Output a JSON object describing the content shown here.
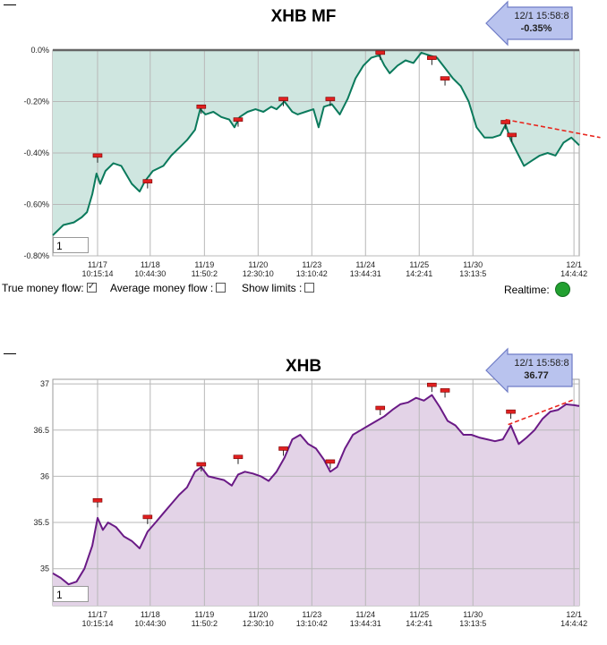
{
  "chart_data": [
    {
      "type": "area",
      "title": "XHB MF",
      "badge": {
        "time": "12/1 15:58:8",
        "value": "-0.35%"
      },
      "period_input": "1",
      "ylim": [
        -0.8,
        0.0
      ],
      "y_ticks": [
        {
          "v": 0.0,
          "label": "0.0%"
        },
        {
          "v": -0.2,
          "label": "-0.20%"
        },
        {
          "v": -0.4,
          "label": "-0.40%"
        },
        {
          "v": -0.6,
          "label": "-0.60%"
        },
        {
          "v": -0.8,
          "label": "-0.80%"
        }
      ],
      "x_ticks": [
        {
          "x": 0.085,
          "date": "11/17",
          "time": "10:15:14"
        },
        {
          "x": 0.185,
          "date": "11/18",
          "time": "10:44:30"
        },
        {
          "x": 0.288,
          "date": "11/19",
          "time": "11:50:2"
        },
        {
          "x": 0.39,
          "date": "11/20",
          "time": "12:30:10"
        },
        {
          "x": 0.492,
          "date": "11/23",
          "time": "13:10:42"
        },
        {
          "x": 0.594,
          "date": "11/24",
          "time": "13:44:31"
        },
        {
          "x": 0.696,
          "date": "11/25",
          "time": "14:2:41"
        },
        {
          "x": 0.798,
          "date": "11/30",
          "time": "13:13:5"
        },
        {
          "x": 0.99,
          "date": "12/1",
          "time": "14:4:42"
        }
      ],
      "series": [
        {
          "line_color": "#0b7a5c",
          "fill_color": "#cfe6e0",
          "points": [
            [
              0.0,
              -0.72
            ],
            [
              0.02,
              -0.68
            ],
            [
              0.04,
              -0.67
            ],
            [
              0.055,
              -0.65
            ],
            [
              0.065,
              -0.63
            ],
            [
              0.075,
              -0.56
            ],
            [
              0.083,
              -0.48
            ],
            [
              0.09,
              -0.52
            ],
            [
              0.1,
              -0.47
            ],
            [
              0.115,
              -0.44
            ],
            [
              0.13,
              -0.45
            ],
            [
              0.15,
              -0.52
            ],
            [
              0.165,
              -0.55
            ],
            [
              0.175,
              -0.51
            ],
            [
              0.19,
              -0.47
            ],
            [
              0.21,
              -0.45
            ],
            [
              0.225,
              -0.41
            ],
            [
              0.24,
              -0.38
            ],
            [
              0.255,
              -0.35
            ],
            [
              0.27,
              -0.31
            ],
            [
              0.28,
              -0.23
            ],
            [
              0.29,
              -0.25
            ],
            [
              0.305,
              -0.24
            ],
            [
              0.32,
              -0.26
            ],
            [
              0.335,
              -0.27
            ],
            [
              0.345,
              -0.3
            ],
            [
              0.355,
              -0.26
            ],
            [
              0.37,
              -0.24
            ],
            [
              0.385,
              -0.23
            ],
            [
              0.4,
              -0.24
            ],
            [
              0.415,
              -0.22
            ],
            [
              0.425,
              -0.23
            ],
            [
              0.44,
              -0.2
            ],
            [
              0.455,
              -0.24
            ],
            [
              0.465,
              -0.25
            ],
            [
              0.48,
              -0.24
            ],
            [
              0.495,
              -0.23
            ],
            [
              0.505,
              -0.3
            ],
            [
              0.515,
              -0.22
            ],
            [
              0.53,
              -0.21
            ],
            [
              0.545,
              -0.25
            ],
            [
              0.56,
              -0.19
            ],
            [
              0.575,
              -0.11
            ],
            [
              0.59,
              -0.06
            ],
            [
              0.605,
              -0.03
            ],
            [
              0.62,
              -0.02
            ],
            [
              0.63,
              -0.06
            ],
            [
              0.64,
              -0.09
            ],
            [
              0.655,
              -0.06
            ],
            [
              0.67,
              -0.04
            ],
            [
              0.685,
              -0.05
            ],
            [
              0.7,
              -0.01
            ],
            [
              0.715,
              -0.02
            ],
            [
              0.73,
              -0.03
            ],
            [
              0.745,
              -0.07
            ],
            [
              0.76,
              -0.11
            ],
            [
              0.775,
              -0.14
            ],
            [
              0.79,
              -0.2
            ],
            [
              0.805,
              -0.3
            ],
            [
              0.82,
              -0.34
            ],
            [
              0.835,
              -0.34
            ],
            [
              0.85,
              -0.33
            ],
            [
              0.86,
              -0.29
            ],
            [
              0.87,
              -0.35
            ],
            [
              0.885,
              -0.41
            ],
            [
              0.895,
              -0.45
            ],
            [
              0.91,
              -0.43
            ],
            [
              0.925,
              -0.41
            ],
            [
              0.94,
              -0.4
            ],
            [
              0.955,
              -0.41
            ],
            [
              0.97,
              -0.36
            ],
            [
              0.985,
              -0.34
            ],
            [
              1.0,
              -0.37
            ]
          ]
        }
      ],
      "markers": [
        [
          0.085,
          -0.41
        ],
        [
          0.18,
          -0.51
        ],
        [
          0.282,
          -0.22
        ],
        [
          0.352,
          -0.27
        ],
        [
          0.438,
          -0.19
        ],
        [
          0.527,
          -0.19
        ],
        [
          0.622,
          -0.01
        ],
        [
          0.72,
          -0.03
        ],
        [
          0.745,
          -0.11
        ],
        [
          0.86,
          -0.28
        ],
        [
          0.872,
          -0.33
        ]
      ],
      "trendline": {
        "color": "#e8261e",
        "from": [
          0.86,
          -0.27
        ],
        "to": [
          1.04,
          -0.34
        ]
      }
    },
    {
      "type": "area",
      "title": "XHB",
      "badge": {
        "time": "12/1 15:58:8",
        "value": "36.77"
      },
      "period_input": "1",
      "ylim": [
        34.6,
        37.05
      ],
      "y_ticks": [
        {
          "v": 37.0,
          "label": "37"
        },
        {
          "v": 36.5,
          "label": "36.5"
        },
        {
          "v": 36.0,
          "label": "36"
        },
        {
          "v": 35.5,
          "label": "35.5"
        },
        {
          "v": 35.0,
          "label": "35"
        }
      ],
      "x_ticks": [
        {
          "x": 0.085,
          "date": "11/17",
          "time": "10:15:14"
        },
        {
          "x": 0.185,
          "date": "11/18",
          "time": "10:44:30"
        },
        {
          "x": 0.288,
          "date": "11/19",
          "time": "11:50:2"
        },
        {
          "x": 0.39,
          "date": "11/20",
          "time": "12:30:10"
        },
        {
          "x": 0.492,
          "date": "11/23",
          "time": "13:10:42"
        },
        {
          "x": 0.594,
          "date": "11/24",
          "time": "13:44:31"
        },
        {
          "x": 0.696,
          "date": "11/25",
          "time": "14:2:41"
        },
        {
          "x": 0.798,
          "date": "11/30",
          "time": "13:13:5"
        },
        {
          "x": 0.99,
          "date": "12/1",
          "time": "14:4:42"
        }
      ],
      "series": [
        {
          "line_color": "#6a1a86",
          "fill_color": "#e3d3e7",
          "points": [
            [
              0.0,
              34.95
            ],
            [
              0.015,
              34.9
            ],
            [
              0.03,
              34.83
            ],
            [
              0.045,
              34.86
            ],
            [
              0.06,
              35.0
            ],
            [
              0.075,
              35.25
            ],
            [
              0.085,
              35.55
            ],
            [
              0.095,
              35.42
            ],
            [
              0.105,
              35.5
            ],
            [
              0.12,
              35.45
            ],
            [
              0.135,
              35.35
            ],
            [
              0.15,
              35.3
            ],
            [
              0.165,
              35.22
            ],
            [
              0.18,
              35.4
            ],
            [
              0.195,
              35.5
            ],
            [
              0.21,
              35.6
            ],
            [
              0.225,
              35.7
            ],
            [
              0.24,
              35.8
            ],
            [
              0.255,
              35.88
            ],
            [
              0.27,
              36.05
            ],
            [
              0.282,
              36.1
            ],
            [
              0.295,
              36.0
            ],
            [
              0.31,
              35.98
            ],
            [
              0.325,
              35.96
            ],
            [
              0.34,
              35.9
            ],
            [
              0.352,
              36.02
            ],
            [
              0.365,
              36.05
            ],
            [
              0.38,
              36.03
            ],
            [
              0.395,
              36.0
            ],
            [
              0.41,
              35.95
            ],
            [
              0.425,
              36.05
            ],
            [
              0.44,
              36.2
            ],
            [
              0.455,
              36.4
            ],
            [
              0.47,
              36.45
            ],
            [
              0.485,
              36.35
            ],
            [
              0.5,
              36.3
            ],
            [
              0.515,
              36.18
            ],
            [
              0.527,
              36.05
            ],
            [
              0.54,
              36.1
            ],
            [
              0.555,
              36.3
            ],
            [
              0.57,
              36.45
            ],
            [
              0.585,
              36.5
            ],
            [
              0.6,
              36.55
            ],
            [
              0.615,
              36.6
            ],
            [
              0.63,
              36.65
            ],
            [
              0.645,
              36.72
            ],
            [
              0.66,
              36.78
            ],
            [
              0.675,
              36.8
            ],
            [
              0.69,
              36.85
            ],
            [
              0.705,
              36.82
            ],
            [
              0.72,
              36.88
            ],
            [
              0.735,
              36.75
            ],
            [
              0.75,
              36.6
            ],
            [
              0.765,
              36.55
            ],
            [
              0.78,
              36.45
            ],
            [
              0.795,
              36.45
            ],
            [
              0.81,
              36.42
            ],
            [
              0.825,
              36.4
            ],
            [
              0.84,
              36.38
            ],
            [
              0.855,
              36.4
            ],
            [
              0.87,
              36.55
            ],
            [
              0.885,
              36.35
            ],
            [
              0.9,
              36.42
            ],
            [
              0.915,
              36.5
            ],
            [
              0.93,
              36.62
            ],
            [
              0.945,
              36.7
            ],
            [
              0.96,
              36.72
            ],
            [
              0.975,
              36.78
            ],
            [
              0.99,
              36.77
            ],
            [
              1.0,
              36.76
            ]
          ]
        }
      ],
      "markers": [
        [
          0.085,
          35.74
        ],
        [
          0.18,
          35.56
        ],
        [
          0.282,
          36.13
        ],
        [
          0.352,
          36.21
        ],
        [
          0.438,
          36.3
        ],
        [
          0.527,
          36.16
        ],
        [
          0.622,
          36.74
        ],
        [
          0.72,
          36.99
        ],
        [
          0.745,
          36.93
        ],
        [
          0.87,
          36.7
        ]
      ],
      "trendline": {
        "color": "#e8261e",
        "from": [
          0.865,
          36.56
        ],
        "to": [
          0.99,
          36.83
        ]
      }
    }
  ],
  "controls": {
    "true_money_flow_label": "True money flow:",
    "true_money_flow_checked": true,
    "average_money_flow_label": "Average money flow :",
    "average_money_flow_checked": false,
    "show_limits_label": "Show limits :",
    "show_limits_checked": false,
    "realtime_label": "Realtime:",
    "realtime_color": "#22a030"
  }
}
